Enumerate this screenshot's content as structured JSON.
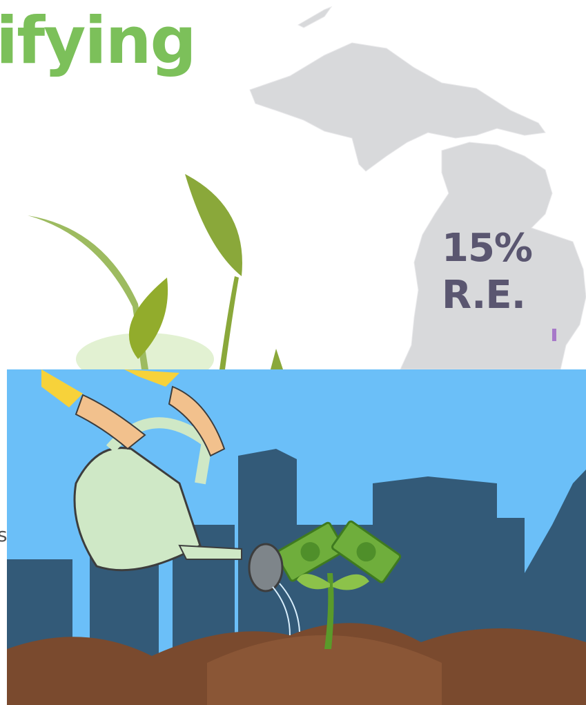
{
  "heading": {
    "title": "ifying"
  },
  "map": {
    "label_1": "15%",
    "label_2": "R.E."
  },
  "side_text": "s"
}
